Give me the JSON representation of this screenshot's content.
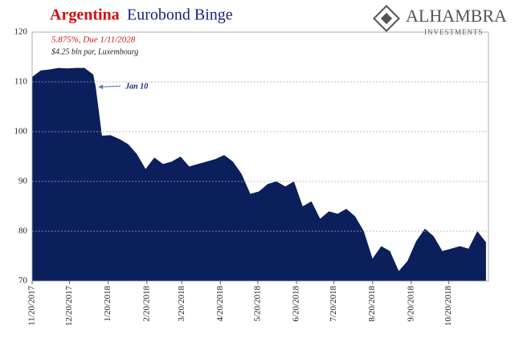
{
  "chart_data": {
    "type": "area",
    "title_highlight": "Argentina",
    "title": "Eurobond Binge",
    "subtitle": "5.875%, Due 1/11/2028",
    "note": "$4.25 bln par, Luxembourg",
    "annotation": {
      "text": "Jan 10",
      "x": "2018-01-10"
    },
    "logo": {
      "name": "ALHAMBRA",
      "tagline": "INVESTMENTS"
    },
    "color": "#0b1f5c",
    "grid": true,
    "x": [
      "2017-11-20",
      "2017-11-27",
      "2017-12-04",
      "2017-12-11",
      "2017-12-18",
      "2017-12-25",
      "2018-01-01",
      "2018-01-08",
      "2018-01-10",
      "2018-01-15",
      "2018-01-22",
      "2018-01-29",
      "2018-02-05",
      "2018-02-12",
      "2018-02-19",
      "2018-02-26",
      "2018-03-05",
      "2018-03-12",
      "2018-03-19",
      "2018-03-26",
      "2018-04-02",
      "2018-04-09",
      "2018-04-16",
      "2018-04-23",
      "2018-04-30",
      "2018-05-07",
      "2018-05-14",
      "2018-05-21",
      "2018-05-28",
      "2018-06-04",
      "2018-06-11",
      "2018-06-18",
      "2018-06-25",
      "2018-07-02",
      "2018-07-09",
      "2018-07-16",
      "2018-07-23",
      "2018-07-30",
      "2018-08-06",
      "2018-08-13",
      "2018-08-20",
      "2018-08-27",
      "2018-09-03",
      "2018-09-10",
      "2018-09-17",
      "2018-09-24",
      "2018-10-01",
      "2018-10-08",
      "2018-10-15",
      "2018-10-22",
      "2018-10-29",
      "2018-11-05",
      "2018-11-12",
      "2018-11-19"
    ],
    "values": [
      111,
      112.3,
      112.5,
      112.8,
      112.7,
      112.8,
      112.8,
      111.5,
      109,
      99.2,
      99.3,
      98.5,
      97.5,
      95.5,
      92.5,
      94.8,
      93.5,
      94,
      95,
      93,
      93.5,
      94,
      94.5,
      95.3,
      94,
      91.5,
      87.5,
      88,
      89.5,
      90,
      89,
      90,
      85,
      86,
      82.5,
      84,
      83.5,
      84.5,
      83,
      80,
      74.5,
      77,
      76,
      72,
      74,
      78,
      80.5,
      79,
      76,
      76.5,
      77,
      76.5,
      80,
      77.8
    ],
    "xlim": [
      "2017-11-20",
      "2018-11-21"
    ],
    "xticks": [
      {
        "value": "2017-11-20",
        "label": "11/20/2017"
      },
      {
        "value": "2017-12-20",
        "label": "12/20/2017"
      },
      {
        "value": "2018-01-20",
        "label": "1/20/2018"
      },
      {
        "value": "2018-02-20",
        "label": "2/20/2018"
      },
      {
        "value": "2018-03-20",
        "label": "3/20/2018"
      },
      {
        "value": "2018-04-20",
        "label": "4/20/2018"
      },
      {
        "value": "2018-05-20",
        "label": "5/20/2018"
      },
      {
        "value": "2018-06-20",
        "label": "6/20/2018"
      },
      {
        "value": "2018-07-20",
        "label": "7/20/2018"
      },
      {
        "value": "2018-08-20",
        "label": "8/20/2018"
      },
      {
        "value": "2018-09-20",
        "label": "9/20/2018"
      },
      {
        "value": "2018-10-20",
        "label": "10/20/2018"
      }
    ],
    "ylim": [
      70,
      120
    ],
    "yticks": [
      70,
      80,
      90,
      100,
      110,
      120
    ]
  }
}
